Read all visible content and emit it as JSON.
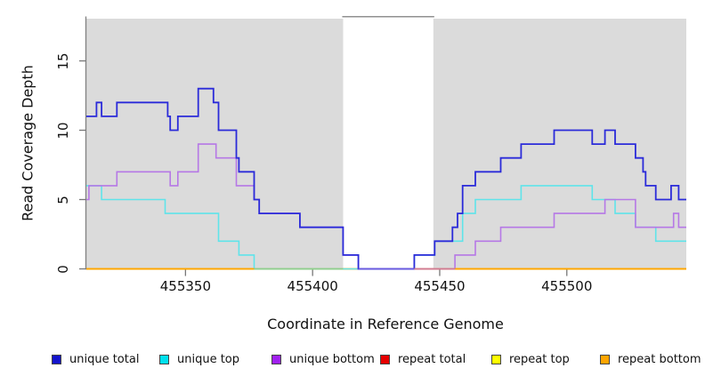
{
  "figure": {
    "background": "#ffffff"
  },
  "axes": {
    "y": {
      "title": "Read Coverage Depth",
      "tick_labels": [
        "0",
        "5",
        "10",
        "15"
      ]
    },
    "x": {
      "title": "Coordinate in Reference Genome",
      "tick_labels": [
        "455350",
        "455400",
        "455450",
        "455500"
      ]
    }
  },
  "panel": {
    "background": "#dbdbdb",
    "border_color": "#909090",
    "tick_color": "#777777",
    "axis_line_color": "#808080"
  },
  "chart_data": {
    "type": "line",
    "step": true,
    "title": "",
    "xlabel": "Coordinate in Reference Genome",
    "ylabel": "Read Coverage Depth",
    "xlim": [
      455311,
      455547
    ],
    "ylim": [
      0,
      18.2
    ],
    "xticks": [
      455350,
      455400,
      455450,
      455500
    ],
    "yticks": [
      0,
      5,
      10,
      15
    ],
    "grid": false,
    "legend_position": "bottom",
    "shaded_regions": [
      {
        "from": 455311,
        "to": 455412
      },
      {
        "from": 455447.5,
        "to": 455547
      }
    ],
    "gap_region": {
      "from": 455412,
      "to": 455447.5
    },
    "series": [
      {
        "name": "repeat total",
        "legend_color": "#e60000",
        "color": "#e60000",
        "width": 1.6,
        "points": [
          [
            455311,
            0
          ]
        ]
      },
      {
        "name": "repeat top",
        "legend_color": "#ffff00",
        "color": "#ffff00",
        "width": 1.6,
        "points": [
          [
            455311,
            0
          ]
        ]
      },
      {
        "name": "repeat bottom",
        "legend_color": "#ffa500",
        "color": "#ffa500",
        "width": 1.6,
        "points": [
          [
            455311,
            0
          ]
        ]
      },
      {
        "name": "unique top",
        "legend_color": "#00e0ee",
        "color": "#5fe4ea",
        "width": 1.6,
        "points": [
          [
            455311,
            6
          ],
          [
            455317,
            5
          ],
          [
            455342,
            4
          ],
          [
            455363,
            2
          ],
          [
            455371,
            1
          ],
          [
            455377,
            0
          ],
          [
            455440,
            1
          ],
          [
            455448,
            2
          ],
          [
            455459,
            4
          ],
          [
            455464,
            5
          ],
          [
            455482,
            6
          ],
          [
            455510,
            5
          ],
          [
            455519,
            4
          ],
          [
            455527,
            3
          ],
          [
            455535,
            2
          ]
        ]
      },
      {
        "name": "unique bottom",
        "legend_color": "#a020f0",
        "color": "#b678e6",
        "width": 1.6,
        "points": [
          [
            455311,
            5
          ],
          [
            455312,
            6
          ],
          [
            455323,
            7
          ],
          [
            455344,
            6
          ],
          [
            455347,
            7
          ],
          [
            455355,
            9
          ],
          [
            455362,
            8
          ],
          [
            455370,
            6
          ],
          [
            455377,
            5
          ],
          [
            455379,
            4
          ],
          [
            455395,
            3
          ],
          [
            455412,
            1
          ],
          [
            455418,
            0
          ],
          [
            455456,
            1
          ],
          [
            455464,
            2
          ],
          [
            455474,
            3
          ],
          [
            455495,
            4
          ],
          [
            455515,
            5
          ],
          [
            455527,
            3
          ],
          [
            455542,
            4
          ],
          [
            455544,
            3
          ]
        ]
      },
      {
        "name": "unique total",
        "legend_color": "#1414cc",
        "color": "#2b2bd9",
        "width": 1.8,
        "points": [
          [
            455311,
            11
          ],
          [
            455315,
            12
          ],
          [
            455317,
            11
          ],
          [
            455323,
            12
          ],
          [
            455343,
            11
          ],
          [
            455344,
            10
          ],
          [
            455347,
            11
          ],
          [
            455355,
            13
          ],
          [
            455361,
            12
          ],
          [
            455363,
            10
          ],
          [
            455370,
            8
          ],
          [
            455371,
            7
          ],
          [
            455377,
            5
          ],
          [
            455379,
            4
          ],
          [
            455395,
            3
          ],
          [
            455412,
            1
          ],
          [
            455418,
            0
          ],
          [
            455440,
            1
          ],
          [
            455448,
            2
          ],
          [
            455455,
            3
          ],
          [
            455457,
            4
          ],
          [
            455459,
            6
          ],
          [
            455464,
            7
          ],
          [
            455474,
            8
          ],
          [
            455482,
            9
          ],
          [
            455495,
            10
          ],
          [
            455510,
            9
          ],
          [
            455515,
            10
          ],
          [
            455519,
            9
          ],
          [
            455527,
            8
          ],
          [
            455530,
            7
          ],
          [
            455531,
            6
          ],
          [
            455535,
            5
          ],
          [
            455541,
            6
          ],
          [
            455544,
            5
          ]
        ]
      }
    ],
    "zero_line_segments": [
      {
        "from": 455311,
        "to": 455377,
        "color": "#ffa500"
      },
      {
        "from": 455377,
        "to": 455412,
        "color": "#8fce8f"
      },
      {
        "from": 455418,
        "to": 455440,
        "color": "#6a5ae0"
      },
      {
        "from": 455440,
        "to": 455456,
        "color": "#d07a92"
      },
      {
        "from": 455456,
        "to": 455547,
        "color": "#ffa500"
      }
    ]
  },
  "legend": {
    "order": [
      "unique total",
      "unique top",
      "unique bottom",
      "repeat total",
      "repeat top",
      "repeat bottom"
    ]
  }
}
